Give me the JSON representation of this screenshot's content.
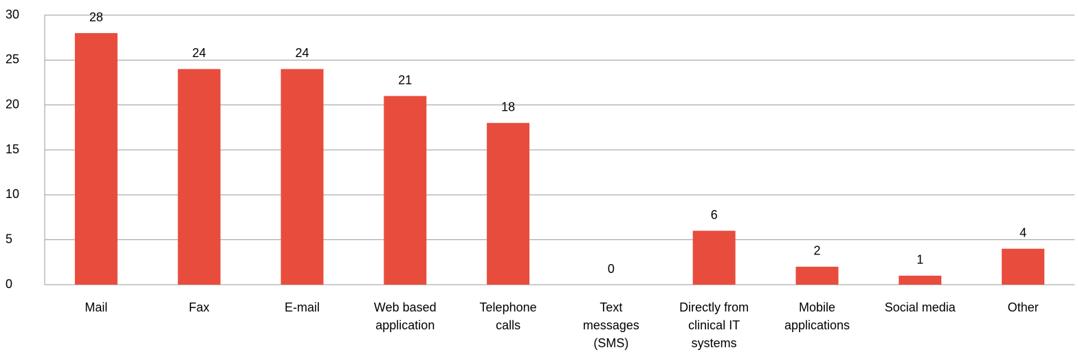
{
  "chart_data": {
    "type": "bar",
    "categories": [
      "Mail",
      "Fax",
      "E-mail",
      "Web based application",
      "Telephone calls",
      "Text messages (SMS)",
      "Directly from clinical IT systems",
      "Mobile applications",
      "Social media",
      "Other"
    ],
    "values": [
      28,
      24,
      24,
      21,
      18,
      0,
      6,
      2,
      1,
      4
    ],
    "color": "#e84c3d",
    "ylim": [
      0,
      30
    ],
    "yticks": [
      0,
      5,
      10,
      15,
      20,
      25,
      30
    ],
    "grid": true
  }
}
